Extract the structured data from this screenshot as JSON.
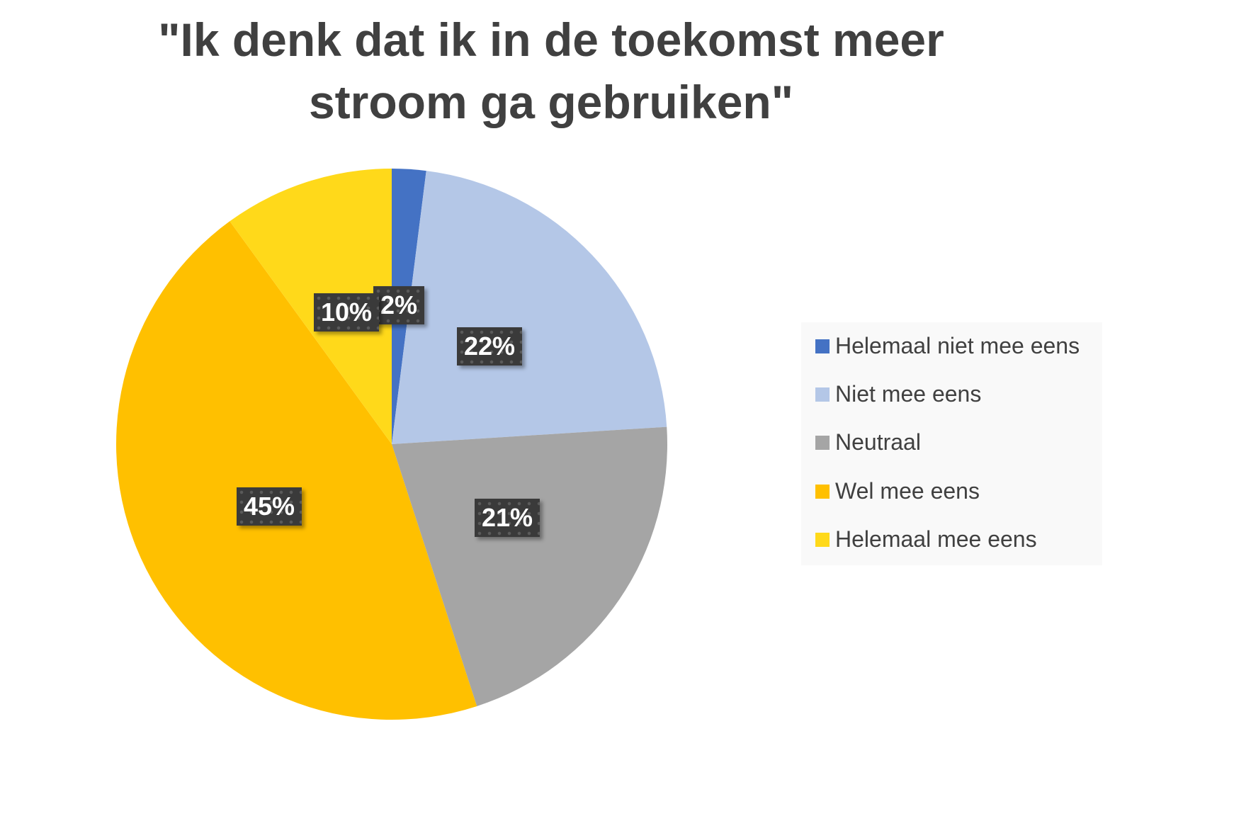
{
  "chart_data": {
    "type": "pie",
    "title": "\"Ik denk dat ik in de toekomst meer stroom ga gebruiken\"",
    "categories": [
      "Helemaal niet mee eens",
      "Niet mee eens",
      "Neutraal",
      "Wel mee eens",
      "Helemaal mee eens"
    ],
    "values": [
      2,
      22,
      21,
      45,
      10
    ],
    "labels": [
      "2%",
      "22%",
      "21%",
      "45%",
      "10%"
    ],
    "colors": [
      "#4472c4",
      "#b4c7e7",
      "#a5a5a5",
      "#ffc000",
      "#ffd966"
    ],
    "legend_position": "right"
  },
  "title_line1": "\"Ik denk dat ik in de toekomst meer",
  "title_line2": "stroom ga gebruiken\""
}
